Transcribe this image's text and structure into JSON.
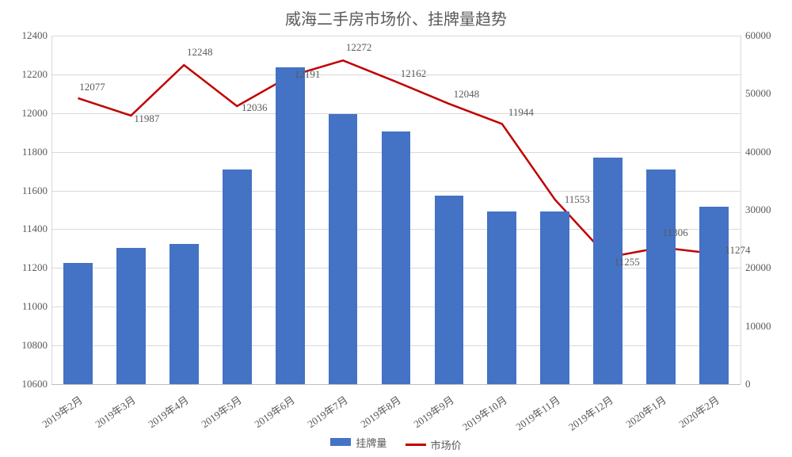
{
  "chart": {
    "type": "bar+line",
    "title": "威海二手房市场价、挂牌量趋势",
    "title_fontsize": 20,
    "title_color": "#595959",
    "background_color": "#ffffff",
    "grid_color": "#d9d9d9",
    "grid_color_major": "#bfbfbf",
    "categories": [
      "2019年2月",
      "2019年3月",
      "2019年4月",
      "2019年5月",
      "2019年6月",
      "2019年7月",
      "2019年8月",
      "2019年9月",
      "2019年10月",
      "2019年11月",
      "2019年12月",
      "2020年1月",
      "2020年2月"
    ],
    "left_axis": {
      "label": "",
      "min": 10600,
      "max": 12400,
      "tick_step": 200,
      "ticks": [
        10600,
        10800,
        11000,
        11200,
        11400,
        11600,
        11800,
        12000,
        12200,
        12400
      ],
      "fontsize": 13,
      "color": "#595959"
    },
    "right_axis": {
      "label": "",
      "min": 0,
      "max": 60000,
      "tick_step": 10000,
      "ticks": [
        0,
        10000,
        20000,
        30000,
        40000,
        50000,
        60000
      ],
      "fontsize": 13,
      "color": "#595959"
    },
    "bars": {
      "name": "挂牌量",
      "axis": "right",
      "color": "#4472c4",
      "bar_width": 0.55,
      "values": [
        20800,
        23500,
        24200,
        37000,
        54500,
        46500,
        43500,
        32500,
        29700,
        29700,
        39000,
        37000,
        30500
      ]
    },
    "line": {
      "name": "市场价",
      "axis": "left",
      "color": "#c00000",
      "line_width": 2.5,
      "values": [
        12077,
        11987,
        12248,
        12036,
        12191,
        12272,
        12162,
        12048,
        11944,
        11553,
        11255,
        11306,
        11274
      ],
      "show_labels": true
    },
    "legend": {
      "items": [
        "挂牌量",
        "市场价"
      ],
      "fontsize": 13,
      "color": "#595959"
    },
    "x_label_rotation": -35,
    "label_fontsize": 13,
    "label_color": "#595959"
  }
}
